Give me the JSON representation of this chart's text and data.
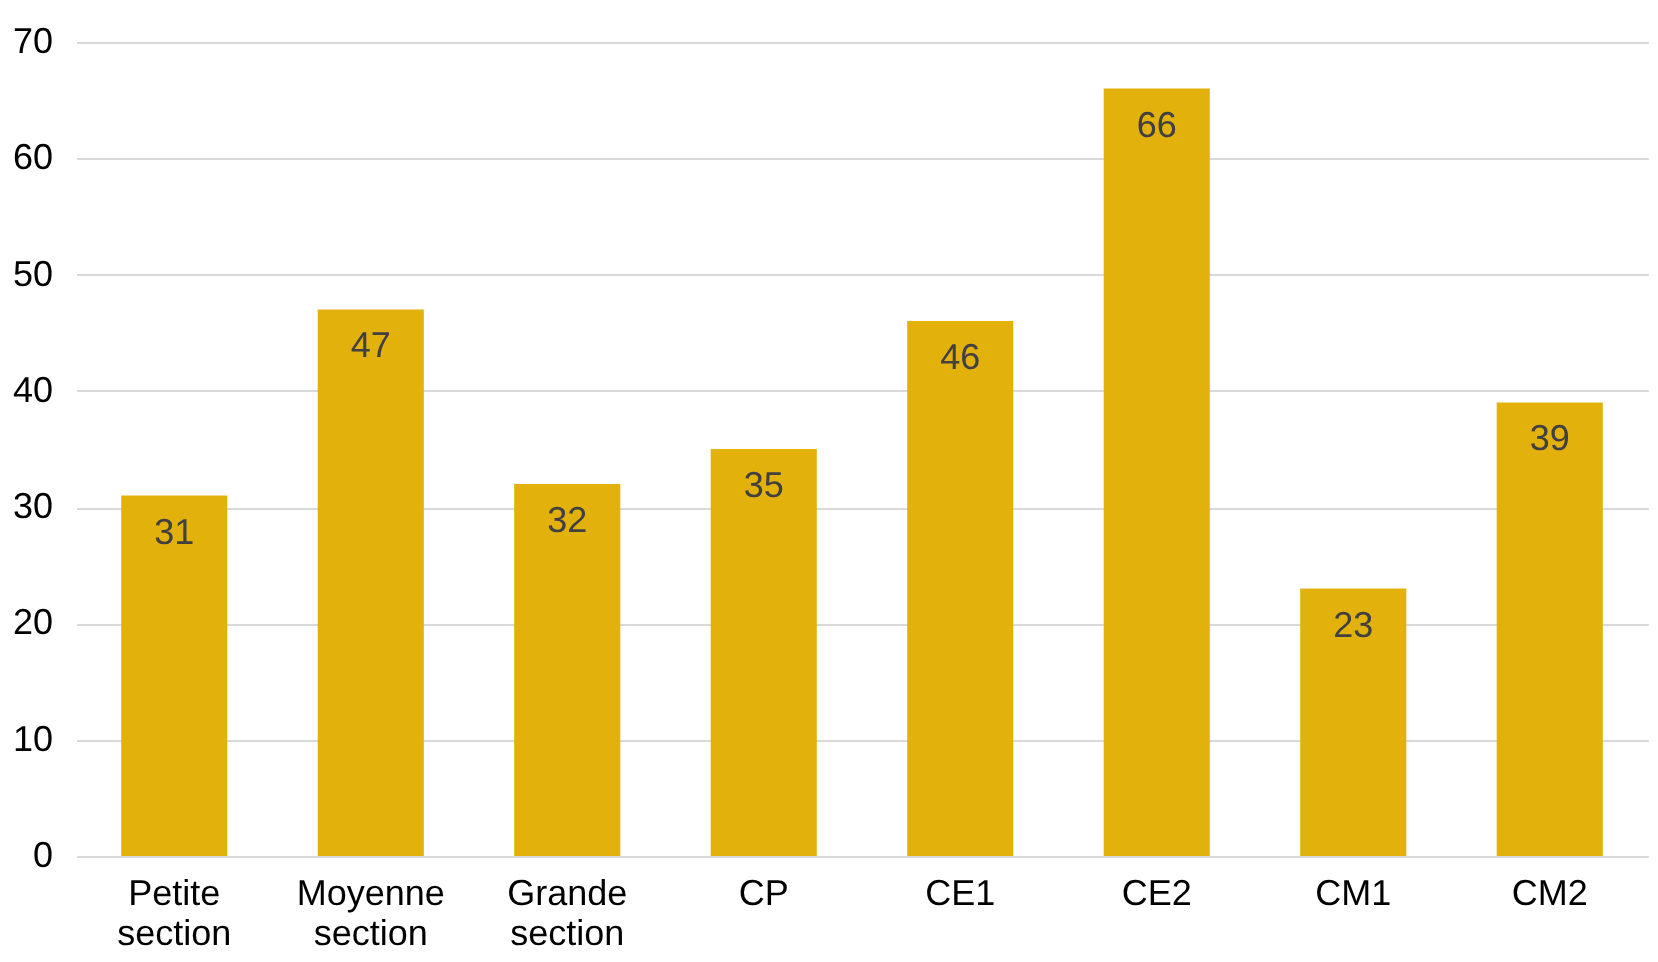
{
  "chart_data": {
    "type": "bar",
    "categories": [
      "Petite section",
      "Moyenne section",
      "Grande section",
      "CP",
      "CE1",
      "CE2",
      "CM1",
      "CM2"
    ],
    "values": [
      31,
      47,
      32,
      35,
      46,
      66,
      23,
      39
    ],
    "color": "#e2b10c",
    "ylim": [
      0,
      70
    ],
    "yticks": [
      0,
      10,
      20,
      30,
      40,
      50,
      60,
      70
    ],
    "grid": "y",
    "data_labels": true
  }
}
